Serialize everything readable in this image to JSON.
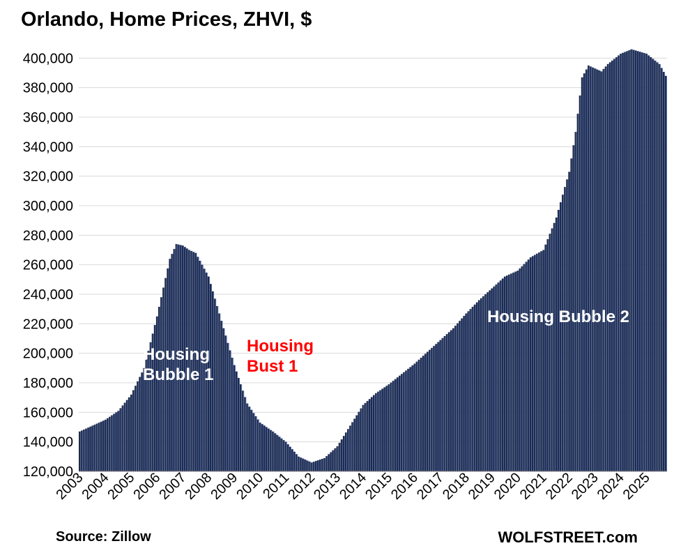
{
  "chart_data": {
    "type": "bar",
    "title": "Orlando, Home Prices, ZHVI, $",
    "source": "Source: Zillow",
    "brand": "WOLFSTREET.com",
    "ylim": [
      120000,
      405000
    ],
    "yticks": [
      "120,000",
      "140,000",
      "160,000",
      "180,000",
      "200,000",
      "220,000",
      "240,000",
      "260,000",
      "280,000",
      "300,000",
      "320,000",
      "340,000",
      "360,000",
      "380,000",
      "400,000"
    ],
    "ytick_values": [
      120000,
      140000,
      160000,
      180000,
      200000,
      220000,
      240000,
      260000,
      280000,
      300000,
      320000,
      340000,
      360000,
      380000,
      400000
    ],
    "xtick_labels": [
      "2003",
      "2004",
      "2005",
      "2006",
      "2007",
      "2008",
      "2009",
      "2010",
      "2011",
      "2012",
      "2013",
      "2014",
      "2015",
      "2016",
      "2017",
      "2018",
      "2019",
      "2020",
      "2021",
      "2022",
      "2023",
      "2024",
      "2025"
    ],
    "grid": true,
    "bar_color": "#1f2a44",
    "annotations": [
      {
        "text": [
          "Housing",
          "Bubble 1"
        ],
        "color": "#ffffff"
      },
      {
        "text": [
          "Housing",
          "Bust 1"
        ],
        "color": "#ff0000"
      },
      {
        "text": [
          "Housing Bubble 2"
        ],
        "color": "#ffffff"
      }
    ],
    "anchors": [
      [
        "2003-01",
        147000
      ],
      [
        "2004-01",
        155000
      ],
      [
        "2004-07",
        161000
      ],
      [
        "2005-01",
        172000
      ],
      [
        "2005-07",
        190000
      ],
      [
        "2006-01",
        225000
      ],
      [
        "2006-07",
        264000
      ],
      [
        "2006-10",
        274000
      ],
      [
        "2007-01",
        273000
      ],
      [
        "2007-04",
        270000
      ],
      [
        "2007-07",
        268000
      ],
      [
        "2008-01",
        252000
      ],
      [
        "2008-07",
        222000
      ],
      [
        "2009-01",
        192000
      ],
      [
        "2009-07",
        166000
      ],
      [
        "2010-01",
        153000
      ],
      [
        "2010-07",
        147000
      ],
      [
        "2011-01",
        140000
      ],
      [
        "2011-07",
        130000
      ],
      [
        "2012-01",
        126000
      ],
      [
        "2012-07",
        129000
      ],
      [
        "2013-01",
        137000
      ],
      [
        "2013-07",
        151000
      ],
      [
        "2014-01",
        165000
      ],
      [
        "2014-07",
        173000
      ],
      [
        "2015-01",
        179000
      ],
      [
        "2015-07",
        186000
      ],
      [
        "2016-01",
        193000
      ],
      [
        "2016-07",
        201000
      ],
      [
        "2017-01",
        209000
      ],
      [
        "2017-07",
        217000
      ],
      [
        "2018-01",
        227000
      ],
      [
        "2018-07",
        236000
      ],
      [
        "2019-01",
        244000
      ],
      [
        "2019-07",
        252000
      ],
      [
        "2020-01",
        256000
      ],
      [
        "2020-07",
        265000
      ],
      [
        "2021-01",
        270000
      ],
      [
        "2021-07",
        292000
      ],
      [
        "2022-01",
        323000
      ],
      [
        "2022-04",
        350000
      ],
      [
        "2022-07",
        387000
      ],
      [
        "2022-10",
        395000
      ],
      [
        "2023-01",
        393000
      ],
      [
        "2023-04",
        391000
      ],
      [
        "2023-07",
        396000
      ],
      [
        "2024-01",
        403000
      ],
      [
        "2024-06",
        406000
      ],
      [
        "2025-01",
        403000
      ],
      [
        "2025-07",
        396000
      ],
      [
        "2025-10",
        388000
      ]
    ]
  }
}
